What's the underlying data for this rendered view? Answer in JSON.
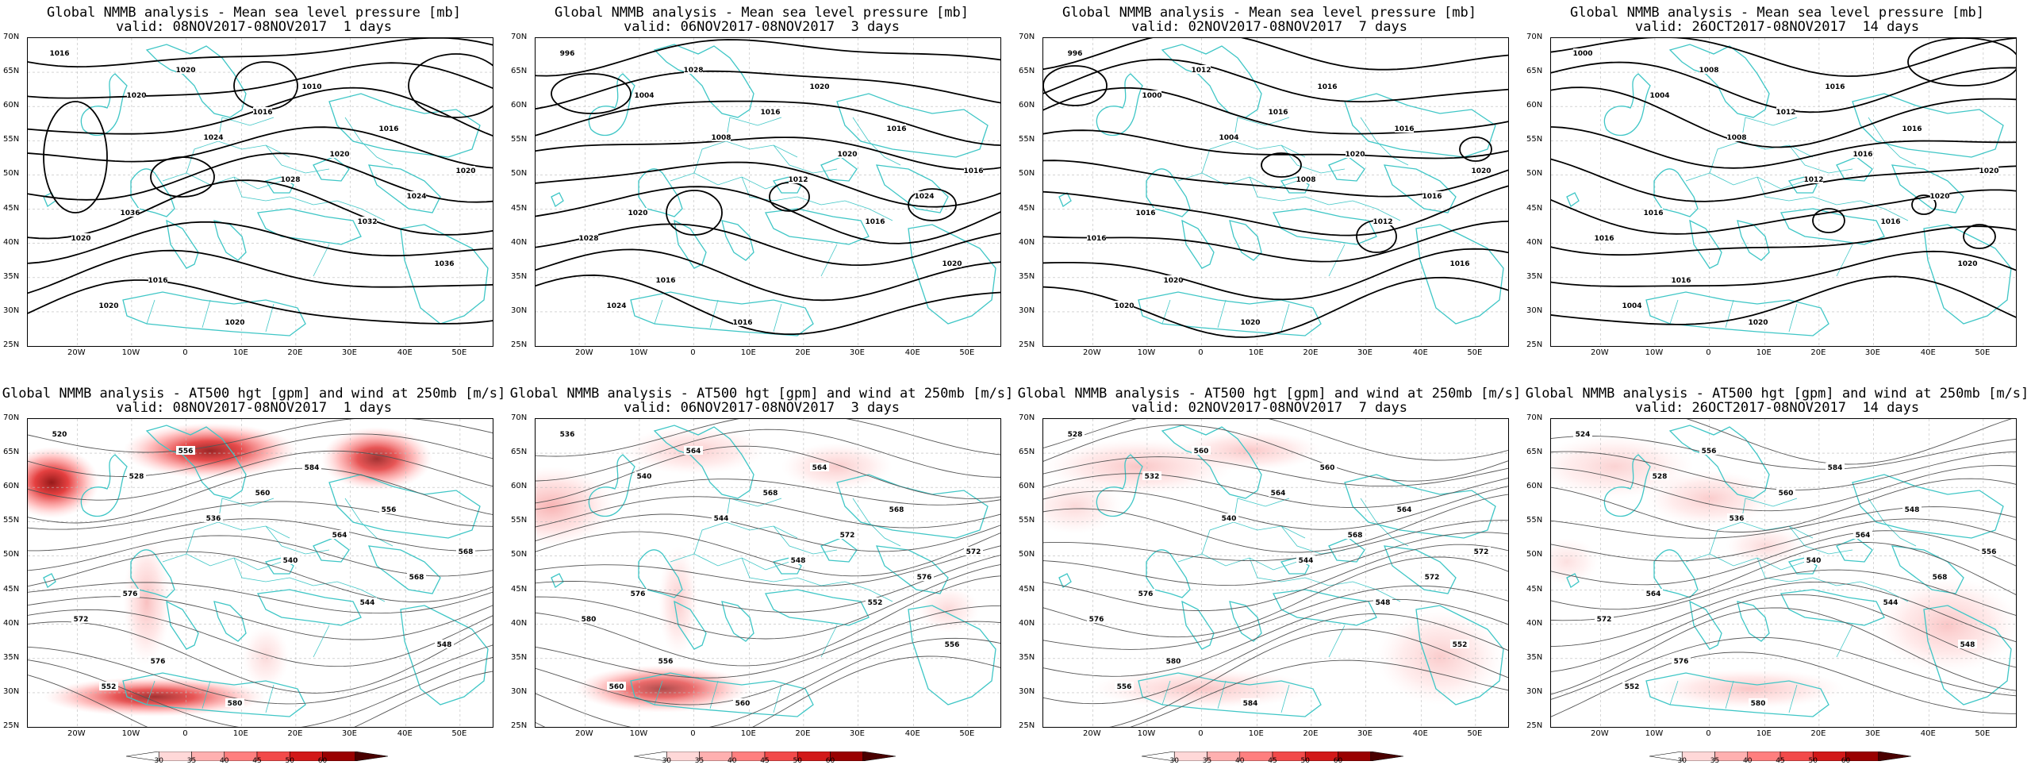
{
  "panels": [
    {
      "title1": "Global NMMB analysis - Mean sea level pressure [mb]",
      "title2": "valid: 08NOV2017-08NOV2017  1 days",
      "type": "slp",
      "variant": 0,
      "labels": [
        "1016",
        "1020",
        "1024",
        "1028",
        "1032",
        "1036",
        "1020",
        "1020",
        "1016",
        "1020",
        "1024",
        "1020",
        "1016",
        "1020",
        "1010",
        "1016",
        "1020",
        "1036"
      ]
    },
    {
      "title1": "Global NMMB analysis - Mean sea level pressure [mb]",
      "title2": "valid: 06NOV2017-08NOV2017  3 days",
      "type": "slp",
      "variant": 1,
      "labels": [
        "996",
        "1004",
        "1008",
        "1012",
        "1016",
        "1020",
        "1024",
        "1028",
        "1016",
        "1020",
        "1024",
        "1028",
        "1016",
        "1016",
        "1020",
        "1016",
        "1016",
        "1020"
      ]
    },
    {
      "title1": "Global NMMB analysis - Mean sea level pressure [mb]",
      "title2": "valid: 02NOV2017-08NOV2017  7 days",
      "type": "slp",
      "variant": 2,
      "labels": [
        "996",
        "1000",
        "1004",
        "1008",
        "1012",
        "1016",
        "1020",
        "1012",
        "1016",
        "1020",
        "1016",
        "1016",
        "1020",
        "1020",
        "1016",
        "1016",
        "1020",
        "1016"
      ]
    },
    {
      "title1": "Global NMMB analysis - Mean sea level pressure [mb]",
      "title2": "valid: 26OCT2017-08NOV2017  14 days",
      "type": "slp",
      "variant": 3,
      "labels": [
        "1000",
        "1004",
        "1008",
        "1012",
        "1016",
        "1020",
        "1004",
        "1008",
        "1012",
        "1016",
        "1020",
        "1016",
        "1016",
        "1020",
        "1016",
        "1016",
        "1020",
        "1016"
      ]
    },
    {
      "title1": "Global NMMB analysis - AT500 hgt [gpm] and wind at 250mb [m/s]",
      "title2": "valid: 08NOV2017-08NOV2017  1 days",
      "type": "z500",
      "variant": 0,
      "labels": [
        "520",
        "528",
        "536",
        "540",
        "544",
        "548",
        "552",
        "556",
        "560",
        "564",
        "568",
        "572",
        "576",
        "580",
        "584",
        "556",
        "568",
        "576"
      ]
    },
    {
      "title1": "Global NMMB analysis - AT500 hgt [gpm] and wind at 250mb [m/s]",
      "title2": "valid: 06NOV2017-08NOV2017  3 days",
      "type": "z500",
      "variant": 1,
      "labels": [
        "536",
        "540",
        "544",
        "548",
        "552",
        "556",
        "560",
        "564",
        "568",
        "572",
        "576",
        "580",
        "556",
        "560",
        "564",
        "568",
        "572",
        "576"
      ]
    },
    {
      "title1": "Global NMMB analysis - AT500 hgt [gpm] and wind at 250mb [m/s]",
      "title2": "valid: 02NOV2017-08NOV2017  7 days",
      "type": "z500",
      "variant": 2,
      "labels": [
        "528",
        "532",
        "540",
        "544",
        "548",
        "552",
        "556",
        "560",
        "564",
        "568",
        "572",
        "576",
        "580",
        "584",
        "560",
        "564",
        "572",
        "576"
      ]
    },
    {
      "title1": "Global NMMB analysis - AT500 hgt [gpm] and wind at 250mb [m/s]",
      "title2": "valid: 26OCT2017-08NOV2017  14 days",
      "type": "z500",
      "variant": 3,
      "labels": [
        "524",
        "528",
        "536",
        "540",
        "544",
        "548",
        "552",
        "556",
        "560",
        "564",
        "568",
        "572",
        "576",
        "580",
        "584",
        "548",
        "556",
        "564"
      ]
    }
  ],
  "axes": {
    "y_labels": [
      "70N",
      "65N",
      "60N",
      "55N",
      "50N",
      "45N",
      "40N",
      "35N",
      "30N",
      "25N"
    ],
    "x_labels": [
      "20W",
      "10W",
      "0",
      "10E",
      "20E",
      "30E",
      "40E",
      "50E"
    ]
  },
  "colorbar": {
    "labels": [
      "30",
      "35",
      "40",
      "45",
      "50",
      "60"
    ],
    "colors": [
      "#ffffff",
      "#ffd8d8",
      "#ffb0b0",
      "#ff7f7f",
      "#f24a4a",
      "#d21919",
      "#9a0000",
      "#4a0000"
    ]
  },
  "colors": {
    "coast": "#3fc6c6",
    "slp_contour": "#000000",
    "z500_contour": "#555555",
    "grid": "#bbbbbb"
  }
}
